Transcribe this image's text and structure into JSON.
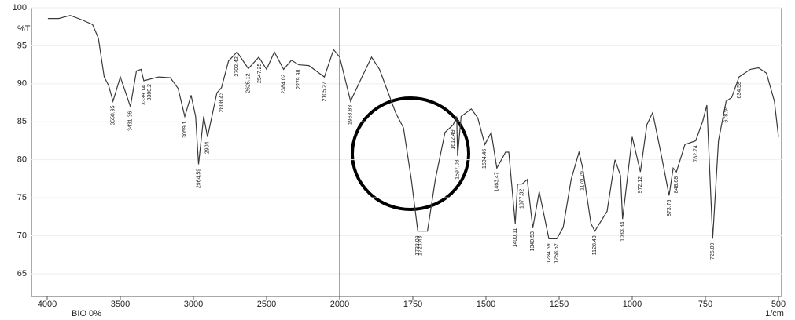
{
  "chart_data": {
    "type": "line",
    "y_label": "%T",
    "x_label": "1/cm",
    "sample_label": "BIO 0%",
    "xlim": [
      4000,
      500
    ],
    "xticks": [
      4000,
      3500,
      3000,
      2500,
      2000,
      1750,
      1500,
      1250,
      1000,
      750,
      500
    ],
    "ylim": [
      62,
      100
    ],
    "yticks": [
      65,
      70,
      75,
      80,
      85,
      90,
      95,
      100
    ],
    "grid": true,
    "series": [
      {
        "color": "#3a3a3a",
        "x": [
          3995,
          3921,
          3842,
          3760,
          3690,
          3650,
          3610,
          3580,
          3550,
          3500,
          3431,
          3390,
          3358,
          3339,
          3300,
          3237,
          3158,
          3105,
          3059,
          3016,
          2985,
          2965,
          2930,
          2904,
          2840,
          2808,
          2760,
          2702,
          2625,
          2553,
          2500,
          2447,
          2384,
          2330,
          2280,
          2211,
          2105,
          2042,
          2000,
          1963,
          1924,
          1891,
          1864,
          1809,
          1782,
          1755,
          1733,
          1723,
          1700,
          1673,
          1640,
          1612,
          1600,
          1597,
          1585,
          1550,
          1528,
          1504,
          1482,
          1463,
          1433,
          1422,
          1400,
          1392,
          1377,
          1359,
          1340,
          1318,
          1285,
          1258,
          1236,
          1209,
          1182,
          1170,
          1141,
          1128,
          1086,
          1059,
          1040,
          1033,
          1000,
          972,
          950,
          930,
          900,
          874,
          860,
          849,
          820,
          783,
          759,
          745,
          725,
          705,
          679,
          660,
          635,
          596,
          568,
          541,
          514,
          500
        ],
        "values": [
          98.6,
          98.6,
          99.0,
          98.4,
          97.8,
          96.0,
          90.9,
          89.8,
          87.7,
          90.9,
          87.0,
          91.7,
          91.9,
          90.4,
          90.6,
          90.9,
          90.8,
          89.4,
          85.7,
          88.5,
          85.7,
          79.4,
          85.7,
          83.0,
          88.8,
          89.5,
          93.0,
          94.2,
          92.0,
          93.5,
          91.9,
          94.2,
          91.9,
          93.1,
          92.5,
          92.4,
          90.9,
          94.5,
          93.5,
          87.7,
          90.9,
          93.5,
          91.9,
          86.2,
          84.2,
          77.4,
          70.6,
          70.6,
          70.6,
          77.4,
          83.6,
          84.6,
          85.7,
          80.5,
          85.7,
          86.7,
          85.5,
          82.0,
          83.6,
          78.9,
          81.0,
          81.0,
          71.6,
          76.8,
          76.8,
          77.4,
          71.0,
          75.8,
          69.6,
          69.6,
          71.1,
          77.4,
          81.0,
          79.0,
          71.6,
          70.6,
          73.2,
          80.0,
          77.9,
          72.2,
          83.0,
          78.4,
          84.6,
          86.2,
          80.5,
          75.3,
          78.9,
          78.4,
          82.0,
          82.5,
          85.1,
          87.2,
          69.6,
          82.5,
          87.7,
          88.2,
          90.9,
          91.9,
          92.1,
          91.4,
          87.7,
          83.0
        ]
      }
    ],
    "peak_labels": [
      3550.95,
      3431.36,
      3339.14,
      3300.2,
      3059.1,
      2964.59,
      2904.0,
      2808.43,
      2702.42,
      2625.12,
      2547.25,
      2384.02,
      2279.98,
      2105.27,
      1963.83,
      1733.09,
      1723.43,
      1612.49,
      1597.08,
      1504.46,
      1463.47,
      1400.11,
      1377.32,
      1340.53,
      1284.59,
      1258.52,
      1170.79,
      1128.43,
      1033.34,
      972.12,
      873.75,
      848.68,
      782.74,
      725.09,
      678.94,
      634.58
    ]
  }
}
